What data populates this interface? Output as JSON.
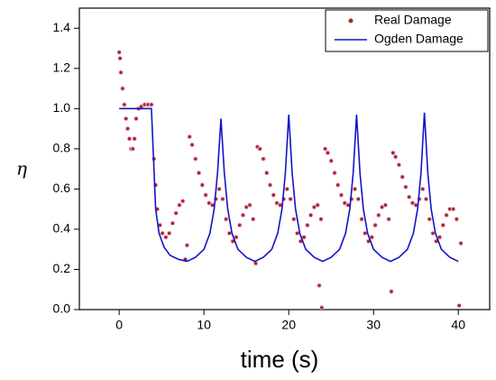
{
  "chart_data": {
    "type": "combo",
    "xlabel": "time (s)",
    "ylabel": "η",
    "xlim": [
      -4.7,
      43.7
    ],
    "ylim": [
      0,
      1.5
    ],
    "xticks": [
      0,
      10,
      20,
      30,
      40
    ],
    "yticks": [
      {
        "value": 0,
        "label": "0.0"
      },
      {
        "value": 0.2,
        "label": "0.2"
      },
      {
        "value": 0.4,
        "label": "0.4"
      },
      {
        "value": 0.6,
        "label": "0.6"
      },
      {
        "value": 0.8,
        "label": "0.8"
      },
      {
        "value": 1.0,
        "label": "1.0"
      },
      {
        "value": 1.2,
        "label": "1.2"
      },
      {
        "value": 1.4,
        "label": "1.4"
      }
    ],
    "legend": "upper right",
    "series": [
      {
        "name": "Real Damage",
        "type": "scatter",
        "color": "#a52a1a",
        "x": [
          0,
          0.1,
          0.2,
          0.4,
          0.6,
          0.8,
          1.0,
          1.2,
          1.4,
          1.6,
          1.8,
          2.0,
          2.3,
          2.6,
          3.0,
          3.4,
          3.8,
          4.1,
          4.3,
          4.5,
          4.8,
          5.1,
          5.5,
          5.9,
          6.3,
          6.7,
          7.1,
          7.5,
          8.3,
          8.6,
          9,
          9.4,
          9.8,
          10.2,
          10.6,
          11,
          11.4,
          11.8,
          12.2,
          12.6,
          13,
          13.4,
          13.8,
          14.2,
          14.6,
          15,
          15.4,
          15.8,
          16.3,
          16.6,
          17,
          17.4,
          17.8,
          18.2,
          18.6,
          19,
          19.4,
          19.8,
          20.2,
          20.6,
          21,
          21.4,
          21.8,
          22.2,
          22.6,
          23,
          23.4,
          23.8,
          24.3,
          24.6,
          25,
          25.4,
          25.8,
          26.2,
          26.6,
          27,
          27.4,
          27.8,
          28.2,
          28.6,
          29,
          29.4,
          29.8,
          30.2,
          30.6,
          31,
          31.4,
          31.8,
          32.3,
          32.6,
          33,
          33.4,
          33.8,
          34.2,
          34.6,
          35,
          35.4,
          35.8,
          36.2,
          36.6,
          37,
          37.4,
          37.8,
          38.2,
          38.6,
          39,
          39.4,
          39.8,
          7.8,
          16.1,
          23.6,
          23.9,
          32.1,
          40.1,
          8.0,
          40.3
        ],
        "values": [
          1.28,
          1.25,
          1.18,
          1.1,
          1.02,
          0.95,
          0.9,
          0.85,
          0.8,
          0.8,
          0.85,
          0.95,
          1.0,
          1.01,
          1.02,
          1.02,
          1.02,
          0.75,
          0.62,
          0.5,
          0.42,
          0.38,
          0.36,
          0.38,
          0.43,
          0.48,
          0.52,
          0.54,
          0.86,
          0.82,
          0.75,
          0.68,
          0.62,
          0.57,
          0.53,
          0.52,
          0.55,
          0.6,
          0.55,
          0.45,
          0.38,
          0.34,
          0.36,
          0.42,
          0.47,
          0.51,
          0.52,
          0.45,
          0.81,
          0.8,
          0.75,
          0.68,
          0.62,
          0.57,
          0.53,
          0.52,
          0.55,
          0.6,
          0.55,
          0.45,
          0.38,
          0.34,
          0.36,
          0.42,
          0.47,
          0.51,
          0.52,
          0.45,
          0.8,
          0.78,
          0.74,
          0.68,
          0.62,
          0.57,
          0.53,
          0.52,
          0.55,
          0.6,
          0.55,
          0.45,
          0.38,
          0.34,
          0.36,
          0.42,
          0.47,
          0.51,
          0.52,
          0.45,
          0.78,
          0.76,
          0.72,
          0.66,
          0.61,
          0.56,
          0.53,
          0.52,
          0.55,
          0.6,
          0.55,
          0.45,
          0.38,
          0.34,
          0.36,
          0.42,
          0.47,
          0.5,
          0.5,
          0.45,
          0.25,
          0.23,
          0.12,
          0.01,
          0.09,
          0.02,
          0.32,
          0.33
        ]
      },
      {
        "name": "Ogden Damage",
        "type": "line",
        "color": "#1414c8",
        "x": [
          0,
          3.8,
          4.0,
          4.3,
          4.7,
          5.3,
          6,
          7,
          8,
          9,
          10,
          10.7,
          11.2,
          11.6,
          12,
          12.4,
          12.8,
          13.3,
          14,
          15,
          16,
          17,
          18,
          18.7,
          19.2,
          19.6,
          20,
          20.4,
          20.8,
          21.3,
          22,
          23,
          24,
          25,
          26,
          26.7,
          27.2,
          27.6,
          28,
          28.4,
          28.8,
          29.3,
          30,
          31,
          32,
          33,
          34,
          34.7,
          35.2,
          35.6,
          36,
          36.4,
          36.8,
          37.3,
          38,
          39,
          40
        ],
        "values": [
          1,
          1,
          0.8,
          0.5,
          0.38,
          0.31,
          0.27,
          0.25,
          0.24,
          0.26,
          0.3,
          0.38,
          0.5,
          0.68,
          0.95,
          0.68,
          0.5,
          0.38,
          0.3,
          0.26,
          0.24,
          0.26,
          0.3,
          0.38,
          0.5,
          0.68,
          0.97,
          0.68,
          0.5,
          0.38,
          0.3,
          0.26,
          0.24,
          0.26,
          0.3,
          0.38,
          0.5,
          0.68,
          0.97,
          0.68,
          0.5,
          0.38,
          0.3,
          0.26,
          0.24,
          0.26,
          0.3,
          0.38,
          0.5,
          0.68,
          0.98,
          0.68,
          0.5,
          0.38,
          0.3,
          0.26,
          0.24
        ]
      }
    ]
  }
}
